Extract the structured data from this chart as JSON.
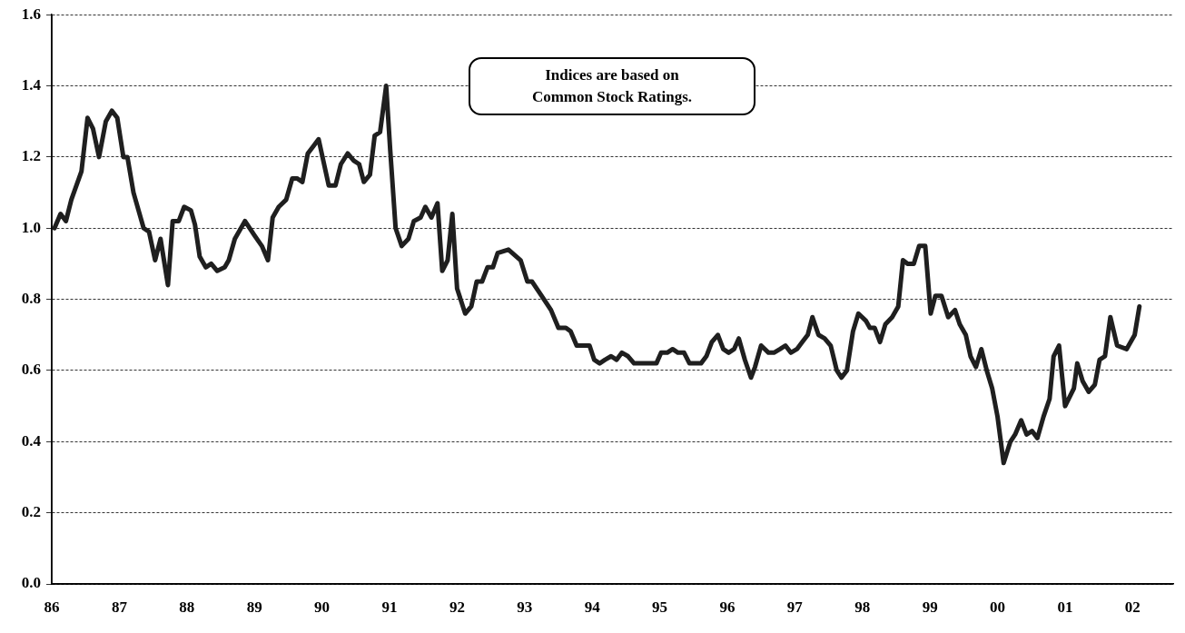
{
  "chart_data": {
    "type": "line",
    "annotations": [
      "Indices are based on Common Stock Ratings."
    ],
    "xlim": [
      1986,
      2002.6
    ],
    "xticks": [
      {
        "value": 1986,
        "label": "86"
      },
      {
        "value": 1987,
        "label": "87"
      },
      {
        "value": 1988,
        "label": "88"
      },
      {
        "value": 1989,
        "label": "89"
      },
      {
        "value": 1990,
        "label": "90"
      },
      {
        "value": 1991,
        "label": "91"
      },
      {
        "value": 1992,
        "label": "92"
      },
      {
        "value": 1993,
        "label": "93"
      },
      {
        "value": 1994,
        "label": "94"
      },
      {
        "value": 1995,
        "label": "95"
      },
      {
        "value": 1996,
        "label": "96"
      },
      {
        "value": 1997,
        "label": "97"
      },
      {
        "value": 1998,
        "label": "98"
      },
      {
        "value": 1999,
        "label": "99"
      },
      {
        "value": 2000,
        "label": "00"
      },
      {
        "value": 2001,
        "label": "01"
      },
      {
        "value": 2002,
        "label": "02"
      }
    ],
    "ylim": [
      0,
      1.6
    ],
    "yticks": [
      {
        "value": 0,
        "label": "0.0"
      },
      0.2,
      0.4,
      0.6,
      0.8,
      {
        "value": 1,
        "label": "1.0"
      },
      1.2,
      1.4,
      1.6
    ],
    "grid": "y",
    "marker": "none",
    "line_style": "solid",
    "series": [
      {
        "color": "#1f1f1f",
        "x": [
          1986.04,
          1986.13,
          1986.21,
          1986.29,
          1986.44,
          1986.53,
          1986.61,
          1986.7,
          1986.8,
          1986.89,
          1986.97,
          1987.06,
          1987.12,
          1987.21,
          1987.36,
          1987.44,
          1987.53,
          1987.61,
          1987.72,
          1987.79,
          1987.88,
          1987.96,
          1988.06,
          1988.12,
          1988.19,
          1988.28,
          1988.36,
          1988.45,
          1988.56,
          1988.62,
          1988.71,
          1988.86,
          1989.0,
          1989.11,
          1989.2,
          1989.27,
          1989.36,
          1989.47,
          1989.56,
          1989.63,
          1989.71,
          1989.79,
          1989.87,
          1989.95,
          1990.1,
          1990.2,
          1990.28,
          1990.38,
          1990.47,
          1990.55,
          1990.62,
          1990.71,
          1990.78,
          1990.86,
          1990.95,
          1991.01,
          1991.09,
          1991.18,
          1991.28,
          1991.36,
          1991.46,
          1991.53,
          1991.62,
          1991.71,
          1991.78,
          1991.86,
          1991.93,
          1992.0,
          1992.12,
          1992.21,
          1992.29,
          1992.37,
          1992.45,
          1992.53,
          1992.6,
          1992.76,
          1992.94,
          1993.04,
          1993.11,
          1993.25,
          1993.39,
          1993.5,
          1993.61,
          1993.68,
          1993.77,
          1993.86,
          1993.96,
          1994.03,
          1994.11,
          1994.19,
          1994.28,
          1994.36,
          1994.44,
          1994.53,
          1994.62,
          1994.71,
          1994.78,
          1994.87,
          1994.95,
          1995.02,
          1995.11,
          1995.19,
          1995.27,
          1995.36,
          1995.44,
          1995.54,
          1995.61,
          1995.69,
          1995.77,
          1995.86,
          1995.94,
          1996.02,
          1996.1,
          1996.17,
          1996.26,
          1996.35,
          1996.41,
          1996.5,
          1996.61,
          1996.69,
          1996.78,
          1996.86,
          1996.94,
          1997.03,
          1997.11,
          1997.19,
          1997.26,
          1997.35,
          1997.44,
          1997.53,
          1997.62,
          1997.69,
          1997.77,
          1997.86,
          1997.94,
          1998.05,
          1998.11,
          1998.18,
          1998.26,
          1998.34,
          1998.44,
          1998.53,
          1998.6,
          1998.67,
          1998.76,
          1998.84,
          1998.93,
          1999.01,
          1999.08,
          1999.17,
          1999.27,
          1999.37,
          1999.44,
          1999.53,
          1999.6,
          1999.68,
          1999.76,
          1999.84,
          1999.92,
          2000.0,
          2000.09,
          2000.19,
          2000.26,
          2000.35,
          2000.43,
          2000.51,
          2000.59,
          2000.68,
          2000.77,
          2000.83,
          2000.91,
          2001.0,
          2001.13,
          2001.18,
          2001.26,
          2001.35,
          2001.44,
          2001.51,
          2001.59,
          2001.67,
          2001.77,
          2001.91,
          2002.03,
          2002.1
        ],
        "values": [
          1.0,
          1.04,
          1.02,
          1.08,
          1.16,
          1.31,
          1.28,
          1.2,
          1.3,
          1.33,
          1.31,
          1.2,
          1.2,
          1.1,
          1.0,
          0.99,
          0.91,
          0.97,
          0.84,
          1.02,
          1.02,
          1.06,
          1.05,
          1.01,
          0.92,
          0.89,
          0.9,
          0.88,
          0.89,
          0.91,
          0.97,
          1.02,
          0.98,
          0.95,
          0.91,
          1.03,
          1.06,
          1.08,
          1.14,
          1.14,
          1.13,
          1.21,
          1.23,
          1.25,
          1.12,
          1.12,
          1.18,
          1.21,
          1.19,
          1.18,
          1.13,
          1.15,
          1.26,
          1.27,
          1.4,
          1.22,
          1.0,
          0.95,
          0.97,
          1.02,
          1.03,
          1.06,
          1.03,
          1.07,
          0.88,
          0.91,
          1.04,
          0.83,
          0.76,
          0.78,
          0.85,
          0.85,
          0.89,
          0.89,
          0.93,
          0.94,
          0.91,
          0.85,
          0.85,
          0.81,
          0.77,
          0.72,
          0.72,
          0.71,
          0.67,
          0.67,
          0.67,
          0.63,
          0.62,
          0.63,
          0.64,
          0.63,
          0.65,
          0.64,
          0.62,
          0.62,
          0.62,
          0.62,
          0.62,
          0.65,
          0.65,
          0.66,
          0.65,
          0.65,
          0.62,
          0.62,
          0.62,
          0.64,
          0.68,
          0.7,
          0.66,
          0.65,
          0.66,
          0.69,
          0.63,
          0.58,
          0.61,
          0.67,
          0.65,
          0.65,
          0.66,
          0.67,
          0.65,
          0.66,
          0.68,
          0.7,
          0.75,
          0.7,
          0.69,
          0.67,
          0.6,
          0.58,
          0.6,
          0.71,
          0.76,
          0.74,
          0.72,
          0.72,
          0.68,
          0.73,
          0.75,
          0.78,
          0.91,
          0.9,
          0.9,
          0.95,
          0.95,
          0.76,
          0.81,
          0.81,
          0.75,
          0.77,
          0.73,
          0.7,
          0.64,
          0.61,
          0.66,
          0.6,
          0.55,
          0.47,
          0.34,
          0.4,
          0.42,
          0.46,
          0.42,
          0.43,
          0.41,
          0.47,
          0.52,
          0.64,
          0.67,
          0.5,
          0.55,
          0.62,
          0.57,
          0.54,
          0.56,
          0.63,
          0.64,
          0.75,
          0.67,
          0.66,
          0.7,
          0.78
        ]
      }
    ]
  }
}
